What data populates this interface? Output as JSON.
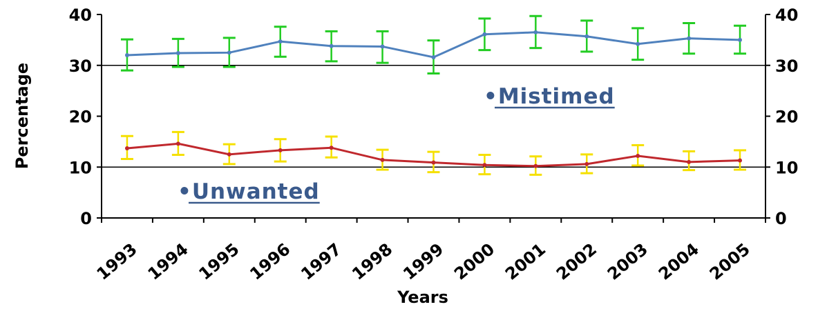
{
  "chart_data": {
    "type": "line",
    "title": "",
    "xlabel": "Years",
    "ylabel": "Percentage",
    "ylim": [
      0,
      40
    ],
    "yticks": [
      "0",
      "10",
      "20",
      "30",
      "40"
    ],
    "categories": [
      "1993",
      "1994",
      "1995",
      "1996",
      "1997",
      "1998",
      "1999",
      "2000",
      "2001",
      "2002",
      "2003",
      "2004",
      "2005"
    ],
    "grid": "horizontal lines at 10 and 30",
    "series": [
      {
        "name": "Mistimed",
        "label_text": "•Mistimed",
        "line_color": "#4f81bd",
        "error_color": "#22cc22",
        "values": [
          32.0,
          32.4,
          32.5,
          34.7,
          33.8,
          33.7,
          31.6,
          36.1,
          36.5,
          35.7,
          34.2,
          35.3,
          35.0
        ],
        "err_low": [
          29.0,
          29.7,
          29.7,
          31.7,
          30.8,
          30.5,
          28.4,
          33.0,
          33.4,
          32.7,
          31.1,
          32.3,
          32.3
        ],
        "err_high": [
          35.1,
          35.2,
          35.4,
          37.6,
          36.7,
          36.7,
          34.9,
          39.2,
          39.7,
          38.8,
          37.3,
          38.3,
          37.8
        ]
      },
      {
        "name": "Unwanted",
        "label_text": "•Unwanted",
        "line_color": "#c0282d",
        "error_color": "#f5e000",
        "values": [
          13.7,
          14.6,
          12.5,
          13.3,
          13.8,
          11.4,
          10.9,
          10.4,
          10.2,
          10.6,
          12.2,
          11.0,
          11.3
        ],
        "err_low": [
          11.6,
          12.4,
          10.6,
          11.1,
          11.9,
          9.5,
          9.0,
          8.6,
          8.5,
          8.8,
          10.3,
          9.4,
          9.5
        ],
        "err_high": [
          16.1,
          16.9,
          14.5,
          15.5,
          16.0,
          13.4,
          13.0,
          12.4,
          12.1,
          12.5,
          14.3,
          13.1,
          13.3
        ]
      }
    ]
  }
}
